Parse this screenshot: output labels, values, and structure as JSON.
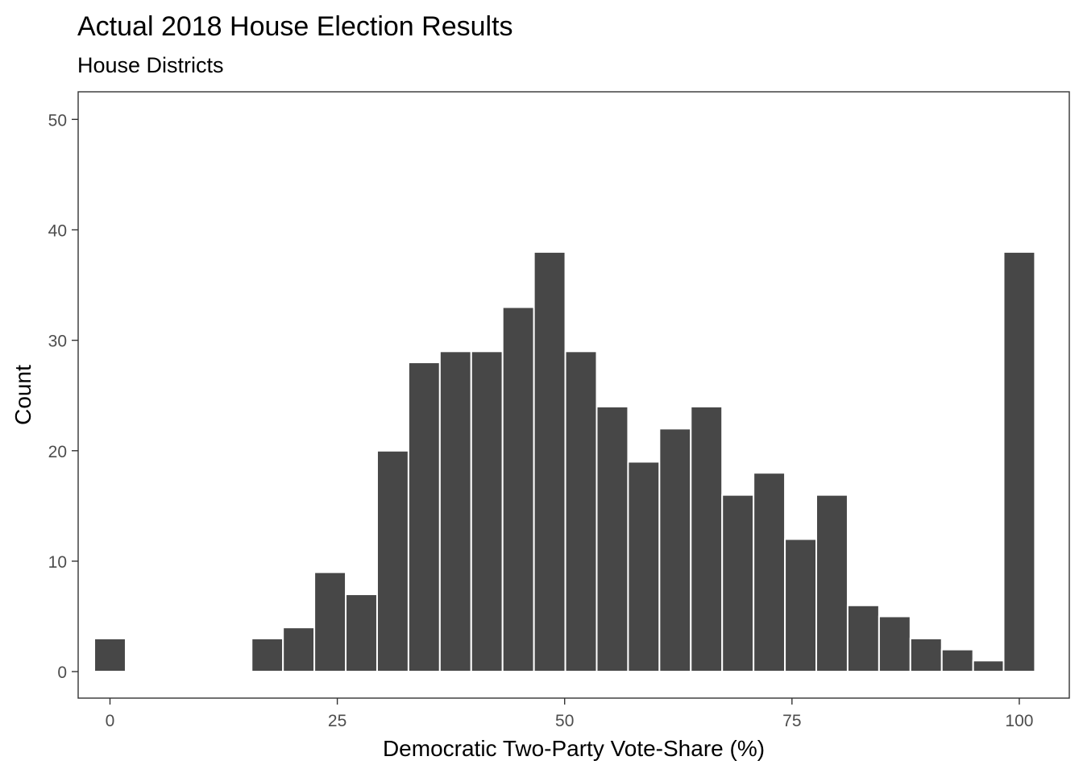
{
  "chart_data": {
    "type": "bar",
    "title": "Actual 2018 House Election Results",
    "subtitle": "House Districts",
    "xlabel": "Democratic Two-Party Vote-Share (%)",
    "ylabel": "Count",
    "xlim": [
      -3.5,
      105.5
    ],
    "ylim": [
      -2.4,
      52.5
    ],
    "bin_width": 3.45,
    "x_ticks": [
      0,
      25,
      50,
      75,
      100
    ],
    "y_ticks": [
      0,
      10,
      20,
      30,
      40,
      50
    ],
    "x_tick_labels": [
      "0",
      "25",
      "50",
      "75",
      "100"
    ],
    "y_tick_labels": [
      "0",
      "10",
      "20",
      "30",
      "40",
      "50"
    ],
    "bins": [
      {
        "center": 0.0,
        "count": 3
      },
      {
        "center": 17.3,
        "count": 3
      },
      {
        "center": 20.75,
        "count": 4
      },
      {
        "center": 24.2,
        "count": 9
      },
      {
        "center": 27.65,
        "count": 7
      },
      {
        "center": 31.1,
        "count": 20
      },
      {
        "center": 34.55,
        "count": 28
      },
      {
        "center": 38.0,
        "count": 29
      },
      {
        "center": 41.45,
        "count": 29
      },
      {
        "center": 44.9,
        "count": 33
      },
      {
        "center": 48.35,
        "count": 38
      },
      {
        "center": 51.8,
        "count": 29
      },
      {
        "center": 55.25,
        "count": 24
      },
      {
        "center": 58.7,
        "count": 19
      },
      {
        "center": 62.15,
        "count": 22
      },
      {
        "center": 65.6,
        "count": 24
      },
      {
        "center": 69.05,
        "count": 16
      },
      {
        "center": 72.5,
        "count": 18
      },
      {
        "center": 75.95,
        "count": 12
      },
      {
        "center": 79.4,
        "count": 16
      },
      {
        "center": 82.85,
        "count": 6
      },
      {
        "center": 86.3,
        "count": 5
      },
      {
        "center": 89.75,
        "count": 3
      },
      {
        "center": 93.2,
        "count": 2
      },
      {
        "center": 96.65,
        "count": 1
      },
      {
        "center": 100.0,
        "count": 38
      }
    ],
    "colors": {
      "bar_fill": "#474747",
      "bar_stroke": "#ffffff",
      "panel_border": "#333333",
      "tick": "#333333"
    },
    "grid": false,
    "legend": "none"
  }
}
